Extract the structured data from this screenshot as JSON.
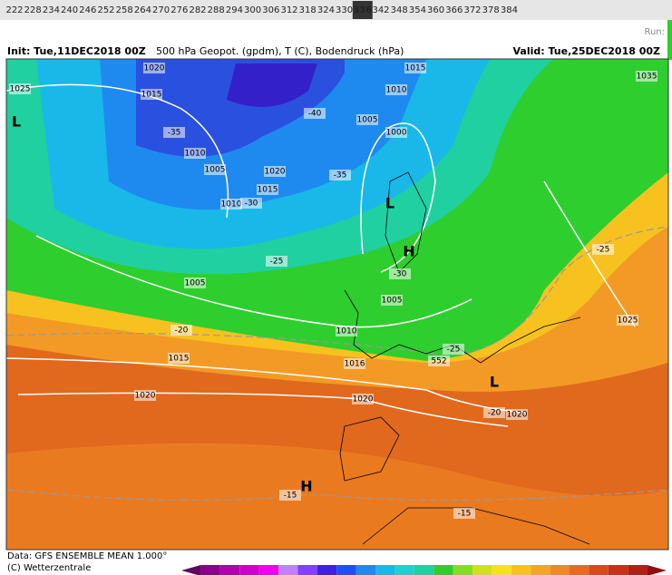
{
  "hours": [
    {
      "label": "222"
    },
    {
      "label": "228"
    },
    {
      "label": "234"
    },
    {
      "label": "240"
    },
    {
      "label": "246"
    },
    {
      "label": "252"
    },
    {
      "label": "258"
    },
    {
      "label": "264"
    },
    {
      "label": "270"
    },
    {
      "label": "276"
    },
    {
      "label": "282"
    },
    {
      "label": "288"
    },
    {
      "label": "294"
    },
    {
      "label": "300"
    },
    {
      "label": "306"
    },
    {
      "label": "312"
    },
    {
      "label": "318"
    },
    {
      "label": "324"
    },
    {
      "label": "330"
    },
    {
      "label": "336",
      "active": true
    },
    {
      "label": "342"
    },
    {
      "label": "348"
    },
    {
      "label": "354"
    },
    {
      "label": "360"
    },
    {
      "label": "366"
    },
    {
      "label": "372"
    },
    {
      "label": "378"
    },
    {
      "label": "384"
    }
  ],
  "run_label": "Run:",
  "header": {
    "init": "Init: Tue,11DEC2018 00Z",
    "title": "500 hPa Geopot. (gpdm), T (C), Bodendruck (hPa)",
    "valid": "Valid: Tue,25DEC2018 00Z"
  },
  "map_labels": [
    "1020",
    "1025",
    "1015",
    "L",
    "-35",
    "1010",
    "1005",
    "1020",
    "1015",
    "1010",
    "-30",
    "1015",
    "1010",
    "-40",
    "1005",
    "1000",
    "-35",
    "L",
    "H",
    "-30",
    "1005",
    "1035",
    "-25",
    "1005",
    "-25",
    "1025",
    "-20",
    "1010",
    "1015",
    "1016",
    "552",
    "-25",
    "1020",
    "1020",
    "L",
    "-20",
    "1020",
    "H",
    "-15",
    "-15"
  ],
  "footer": {
    "data": "Data: GFS ENSEMBLE MEAN 1.000°",
    "copyright": "(C) Wetterzentrale"
  }
}
